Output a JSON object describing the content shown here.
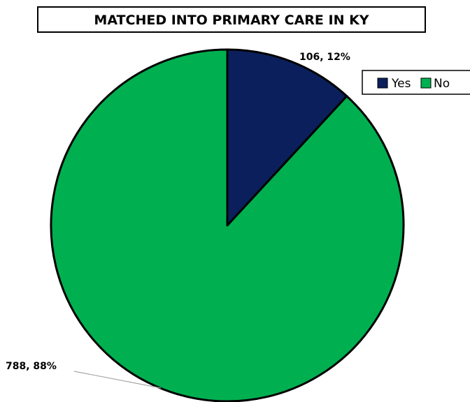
{
  "chart_data": {
    "type": "pie",
    "title": "MATCHED INTO PRIMARY CARE IN KY",
    "categories": [
      "Yes",
      "No"
    ],
    "values": [
      106,
      788
    ],
    "percentages": [
      12,
      88
    ],
    "data_labels": [
      "106, 12%",
      "788, 88%"
    ],
    "colors": [
      "#0b1f5c",
      "#00b050"
    ],
    "legend": {
      "position": "top-right",
      "entries": [
        "Yes",
        "No"
      ]
    }
  }
}
